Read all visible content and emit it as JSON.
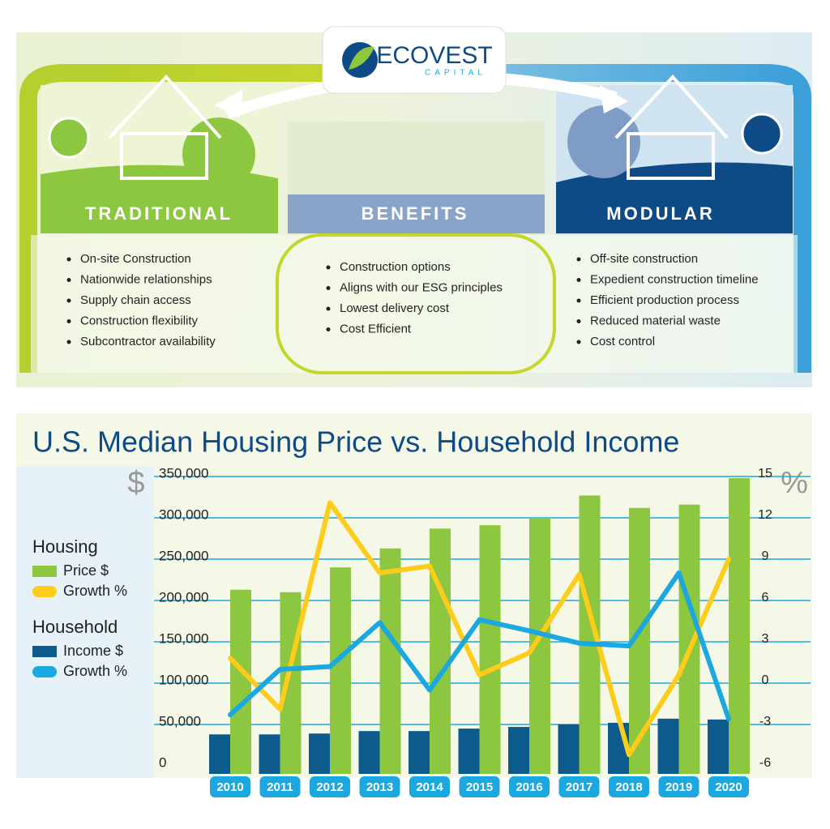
{
  "infographic": {
    "logo": {
      "name": "ECOVEST",
      "sub": "CAPITAL"
    },
    "panels": [
      {
        "title": "TRADITIONAL",
        "items": [
          "On-site Construction",
          "Nationwide relationships",
          "Supply chain access",
          "Construction flexibility",
          "Subcontractor availability"
        ]
      },
      {
        "title": "BENEFITS",
        "items": [
          "Construction options",
          "Aligns with our ESG principles",
          "Lowest delivery cost",
          "Cost Efficient"
        ]
      },
      {
        "title": "MODULAR",
        "items": [
          "Off-site construction",
          "Expedient construction timeline",
          "Efficient production process",
          "Reduced material waste",
          "Cost control"
        ]
      }
    ]
  },
  "chart_data": {
    "type": "bar",
    "title": "U.S. Median Housing Price vs. Household Income",
    "y_label": "$",
    "y2_label": "%",
    "legend_titles": [
      "Housing",
      "Household"
    ],
    "categories": [
      "2010",
      "2011",
      "2012",
      "2013",
      "2014",
      "2015",
      "2016",
      "2017",
      "2018",
      "2019",
      "2020"
    ],
    "series": [
      {
        "name": "Price $",
        "type": "bar",
        "color": "#8dc63f",
        "values": [
          213000,
          210000,
          240000,
          263000,
          287000,
          291000,
          300000,
          327000,
          312000,
          316000,
          348000
        ]
      },
      {
        "name": "Growth %",
        "type": "line",
        "axis": "y2",
        "color": "#ffcc1a",
        "values": [
          1.8,
          -1.9,
          13.1,
          8.0,
          8.5,
          0.6,
          2.2,
          7.9,
          -5.2,
          0.6,
          9.0
        ]
      },
      {
        "name": "Income  $",
        "type": "bar",
        "color": "#0d5a8c",
        "values": [
          38000,
          38000,
          39000,
          42000,
          42000,
          45000,
          47000,
          50000,
          52000,
          57000,
          56000
        ]
      },
      {
        "name": "Growth %",
        "type": "line",
        "axis": "y2",
        "color": "#1ba7df",
        "values": [
          -2.3,
          1.0,
          1.2,
          4.4,
          -0.5,
          4.6,
          3.8,
          2.9,
          2.7,
          8.0,
          -2.6
        ]
      }
    ],
    "ylim": [
      0,
      350000
    ],
    "yticks": [
      0,
      {
        "value": 50000,
        "label": "50,000"
      },
      {
        "value": 100000,
        "label": "100,000"
      },
      {
        "value": 150000,
        "label": "150,000"
      },
      {
        "value": 200000,
        "label": "200,000"
      },
      {
        "value": 250000,
        "label": "250,000"
      },
      {
        "value": 300000,
        "label": "300,000"
      },
      {
        "value": 350000,
        "label": "350,000"
      }
    ],
    "y2lim": [
      -6,
      15
    ],
    "y2ticks": [
      -6,
      -3,
      0,
      3,
      6,
      9,
      12,
      15
    ],
    "grid": true
  }
}
